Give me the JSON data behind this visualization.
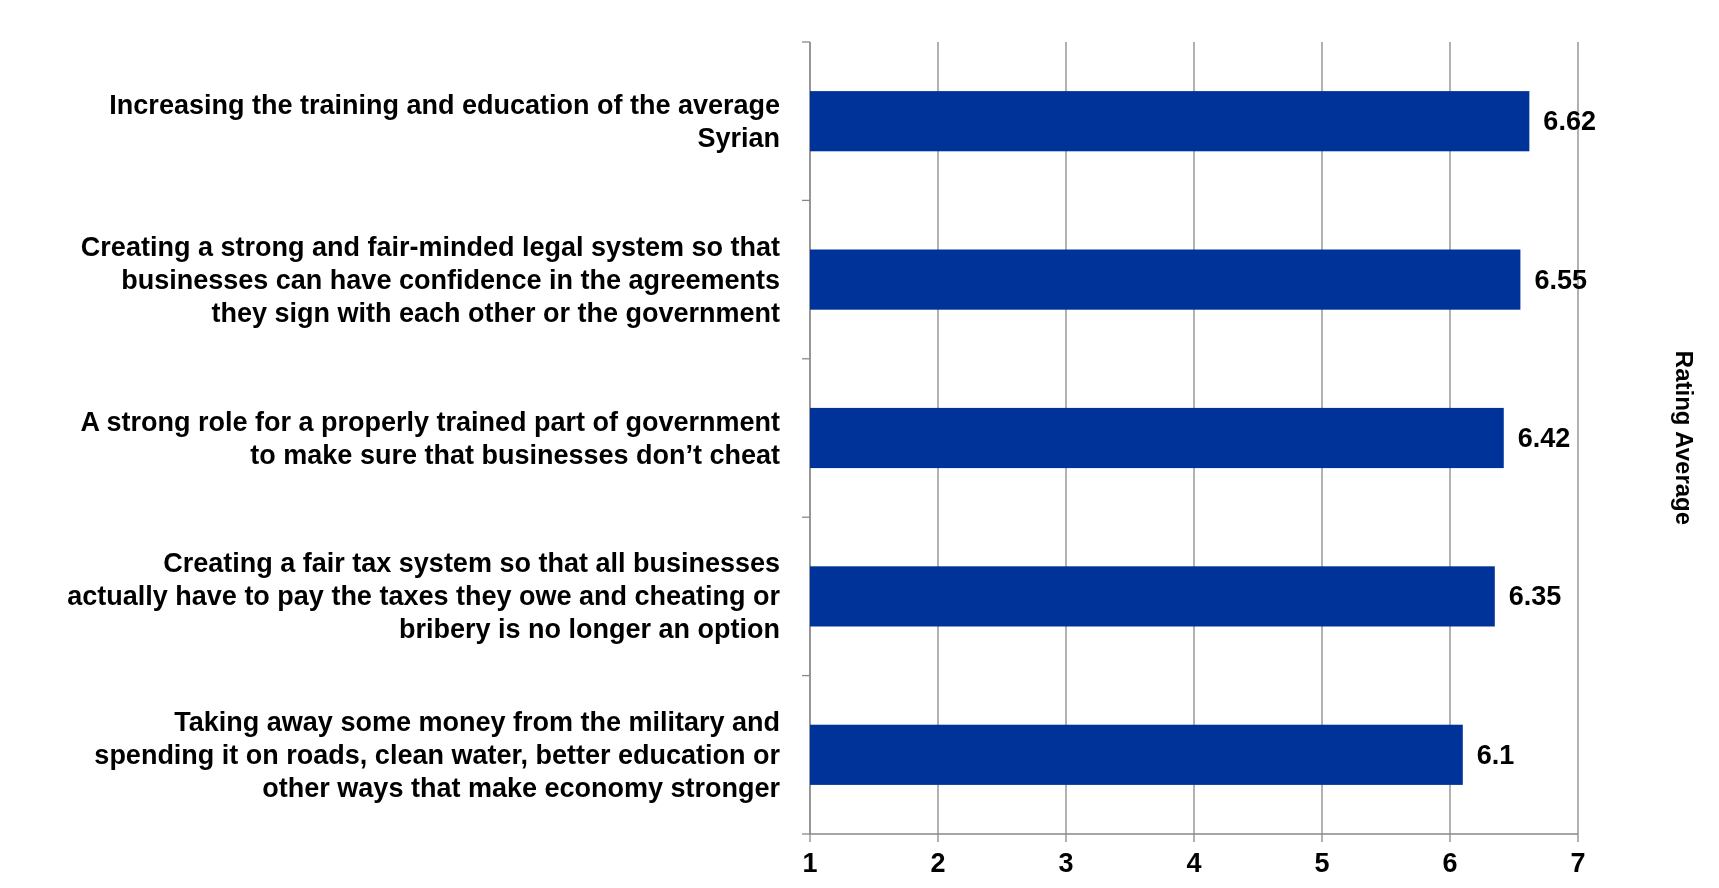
{
  "chart_data": {
    "type": "bar",
    "orientation": "horizontal",
    "ylabel": "Rating Average",
    "categories": [
      "Increasing the training and education of the average Syrian",
      "Creating a strong and fair-minded legal system so that businesses can have confidence in the agreements they sign with each other or the government",
      "A strong role for a properly trained part of government to make sure that businesses don’t cheat",
      "Creating a fair tax system so that all businesses actually have to pay the taxes they owe and cheating or bribery is no longer an option",
      "Taking away some money from the military and spending it on roads, clean water, better education or other ways that make economy stronger"
    ],
    "values": [
      6.62,
      6.55,
      6.42,
      6.35,
      6.1
    ],
    "color": "#003399",
    "xlim": [
      1,
      7
    ],
    "xticks": [
      1,
      2,
      3,
      4,
      5,
      6,
      7
    ],
    "grid": "x",
    "data_labels": true
  }
}
